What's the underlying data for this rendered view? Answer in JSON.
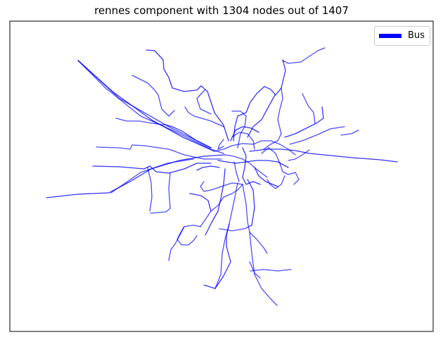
{
  "chart_data": {
    "type": "network",
    "title": "rennes component with 1304 nodes out of 1407",
    "legend": {
      "entries": [
        {
          "label": "Bus",
          "color": "#0000ff"
        }
      ],
      "position": "top-right"
    },
    "axes_visible": false,
    "grid": false
  },
  "colors": {
    "edge": "#0000ff",
    "frame": "#000000",
    "background": "#ffffff"
  }
}
